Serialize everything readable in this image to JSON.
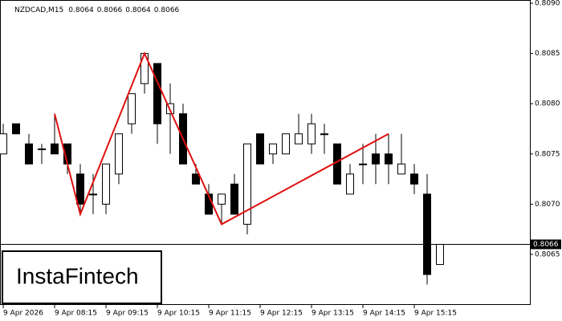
{
  "chart_data": {
    "type": "candlestick",
    "title": "NZDCAD,M15",
    "categories": [
      "9 Apr 2026",
      null,
      null,
      null,
      "9 Apr 08:15",
      null,
      null,
      null,
      "9 Apr 09:15",
      null,
      null,
      null,
      "9 Apr 10:15",
      null,
      null,
      null,
      "9 Apr 11:15",
      null,
      null,
      null,
      "9 Apr 12:15",
      null,
      null,
      null,
      "9 Apr 13:15",
      null,
      null,
      null,
      "9 Apr 14:15",
      null,
      null,
      null,
      "9 Apr 15:15",
      null,
      null
    ],
    "open": [
      0.8075,
      0.8078,
      0.8076,
      0.80755,
      0.8076,
      0.8076,
      0.8073,
      0.8071,
      0.807,
      0.8073,
      0.8078,
      0.8082,
      0.8084,
      0.8079,
      0.8079,
      0.8073,
      0.8071,
      0.807,
      0.8072,
      0.8068,
      0.8077,
      0.8075,
      0.8075,
      0.8076,
      0.8076,
      0.8077,
      0.8076,
      0.8071,
      0.8074,
      0.8075,
      0.8075,
      0.8073,
      0.8073,
      0.8071,
      0.8064
    ],
    "high": [
      0.8078,
      0.8078,
      0.8077,
      0.8076,
      0.8079,
      0.8076,
      0.8074,
      0.8073,
      0.8074,
      0.8077,
      0.8081,
      0.8085,
      0.8084,
      0.8082,
      0.808,
      0.8074,
      0.8072,
      0.8071,
      0.8073,
      0.8076,
      0.8077,
      0.8076,
      0.8077,
      0.8079,
      0.8079,
      0.8078,
      0.8076,
      0.8074,
      0.8076,
      0.8077,
      0.8077,
      0.8077,
      0.8074,
      0.8073,
      0.8066
    ],
    "low": [
      0.8075,
      0.8077,
      0.8074,
      0.8074,
      0.8075,
      0.8073,
      0.8069,
      0.8069,
      0.8069,
      0.8072,
      0.8077,
      0.8081,
      0.8076,
      0.8075,
      0.8074,
      0.8072,
      0.8069,
      0.8068,
      0.8069,
      0.8067,
      0.8074,
      0.8074,
      0.8075,
      0.8076,
      0.8075,
      0.8075,
      0.8072,
      0.8071,
      0.8072,
      0.8072,
      0.8072,
      0.8073,
      0.8071,
      0.8062,
      0.8064
    ],
    "close": [
      0.8077,
      0.8077,
      0.8074,
      0.80755,
      0.8075,
      0.8074,
      0.807,
      0.8071,
      0.8074,
      0.8077,
      0.8081,
      0.8085,
      0.8078,
      0.808,
      0.8074,
      0.8072,
      0.8069,
      0.8071,
      0.8069,
      0.8076,
      0.8074,
      0.8076,
      0.8077,
      0.8077,
      0.8078,
      0.8077,
      0.8072,
      0.8073,
      0.8074,
      0.8074,
      0.8074,
      0.8074,
      0.8072,
      0.8063,
      0.8066
    ],
    "ylim": [
      0.806,
      0.809
    ],
    "yticks": [
      0.8065,
      {
        "value": 0.807,
        "label": "0.8070"
      },
      0.8075,
      {
        "value": 0.808,
        "label": "0.8080"
      },
      0.8085,
      {
        "value": 0.809,
        "label": "0.8090"
      }
    ],
    "current_price": 0.8066,
    "pattern": {
      "color": "#e01010",
      "points": [
        {
          "index": 4,
          "value": 0.8079
        },
        {
          "index": 6,
          "value": 0.8069
        },
        {
          "index": 11,
          "value": 0.8085
        },
        {
          "index": 17,
          "value": 0.8068
        },
        {
          "index": 30,
          "value": 0.8077
        }
      ]
    },
    "watermark": "InstaFintech"
  }
}
